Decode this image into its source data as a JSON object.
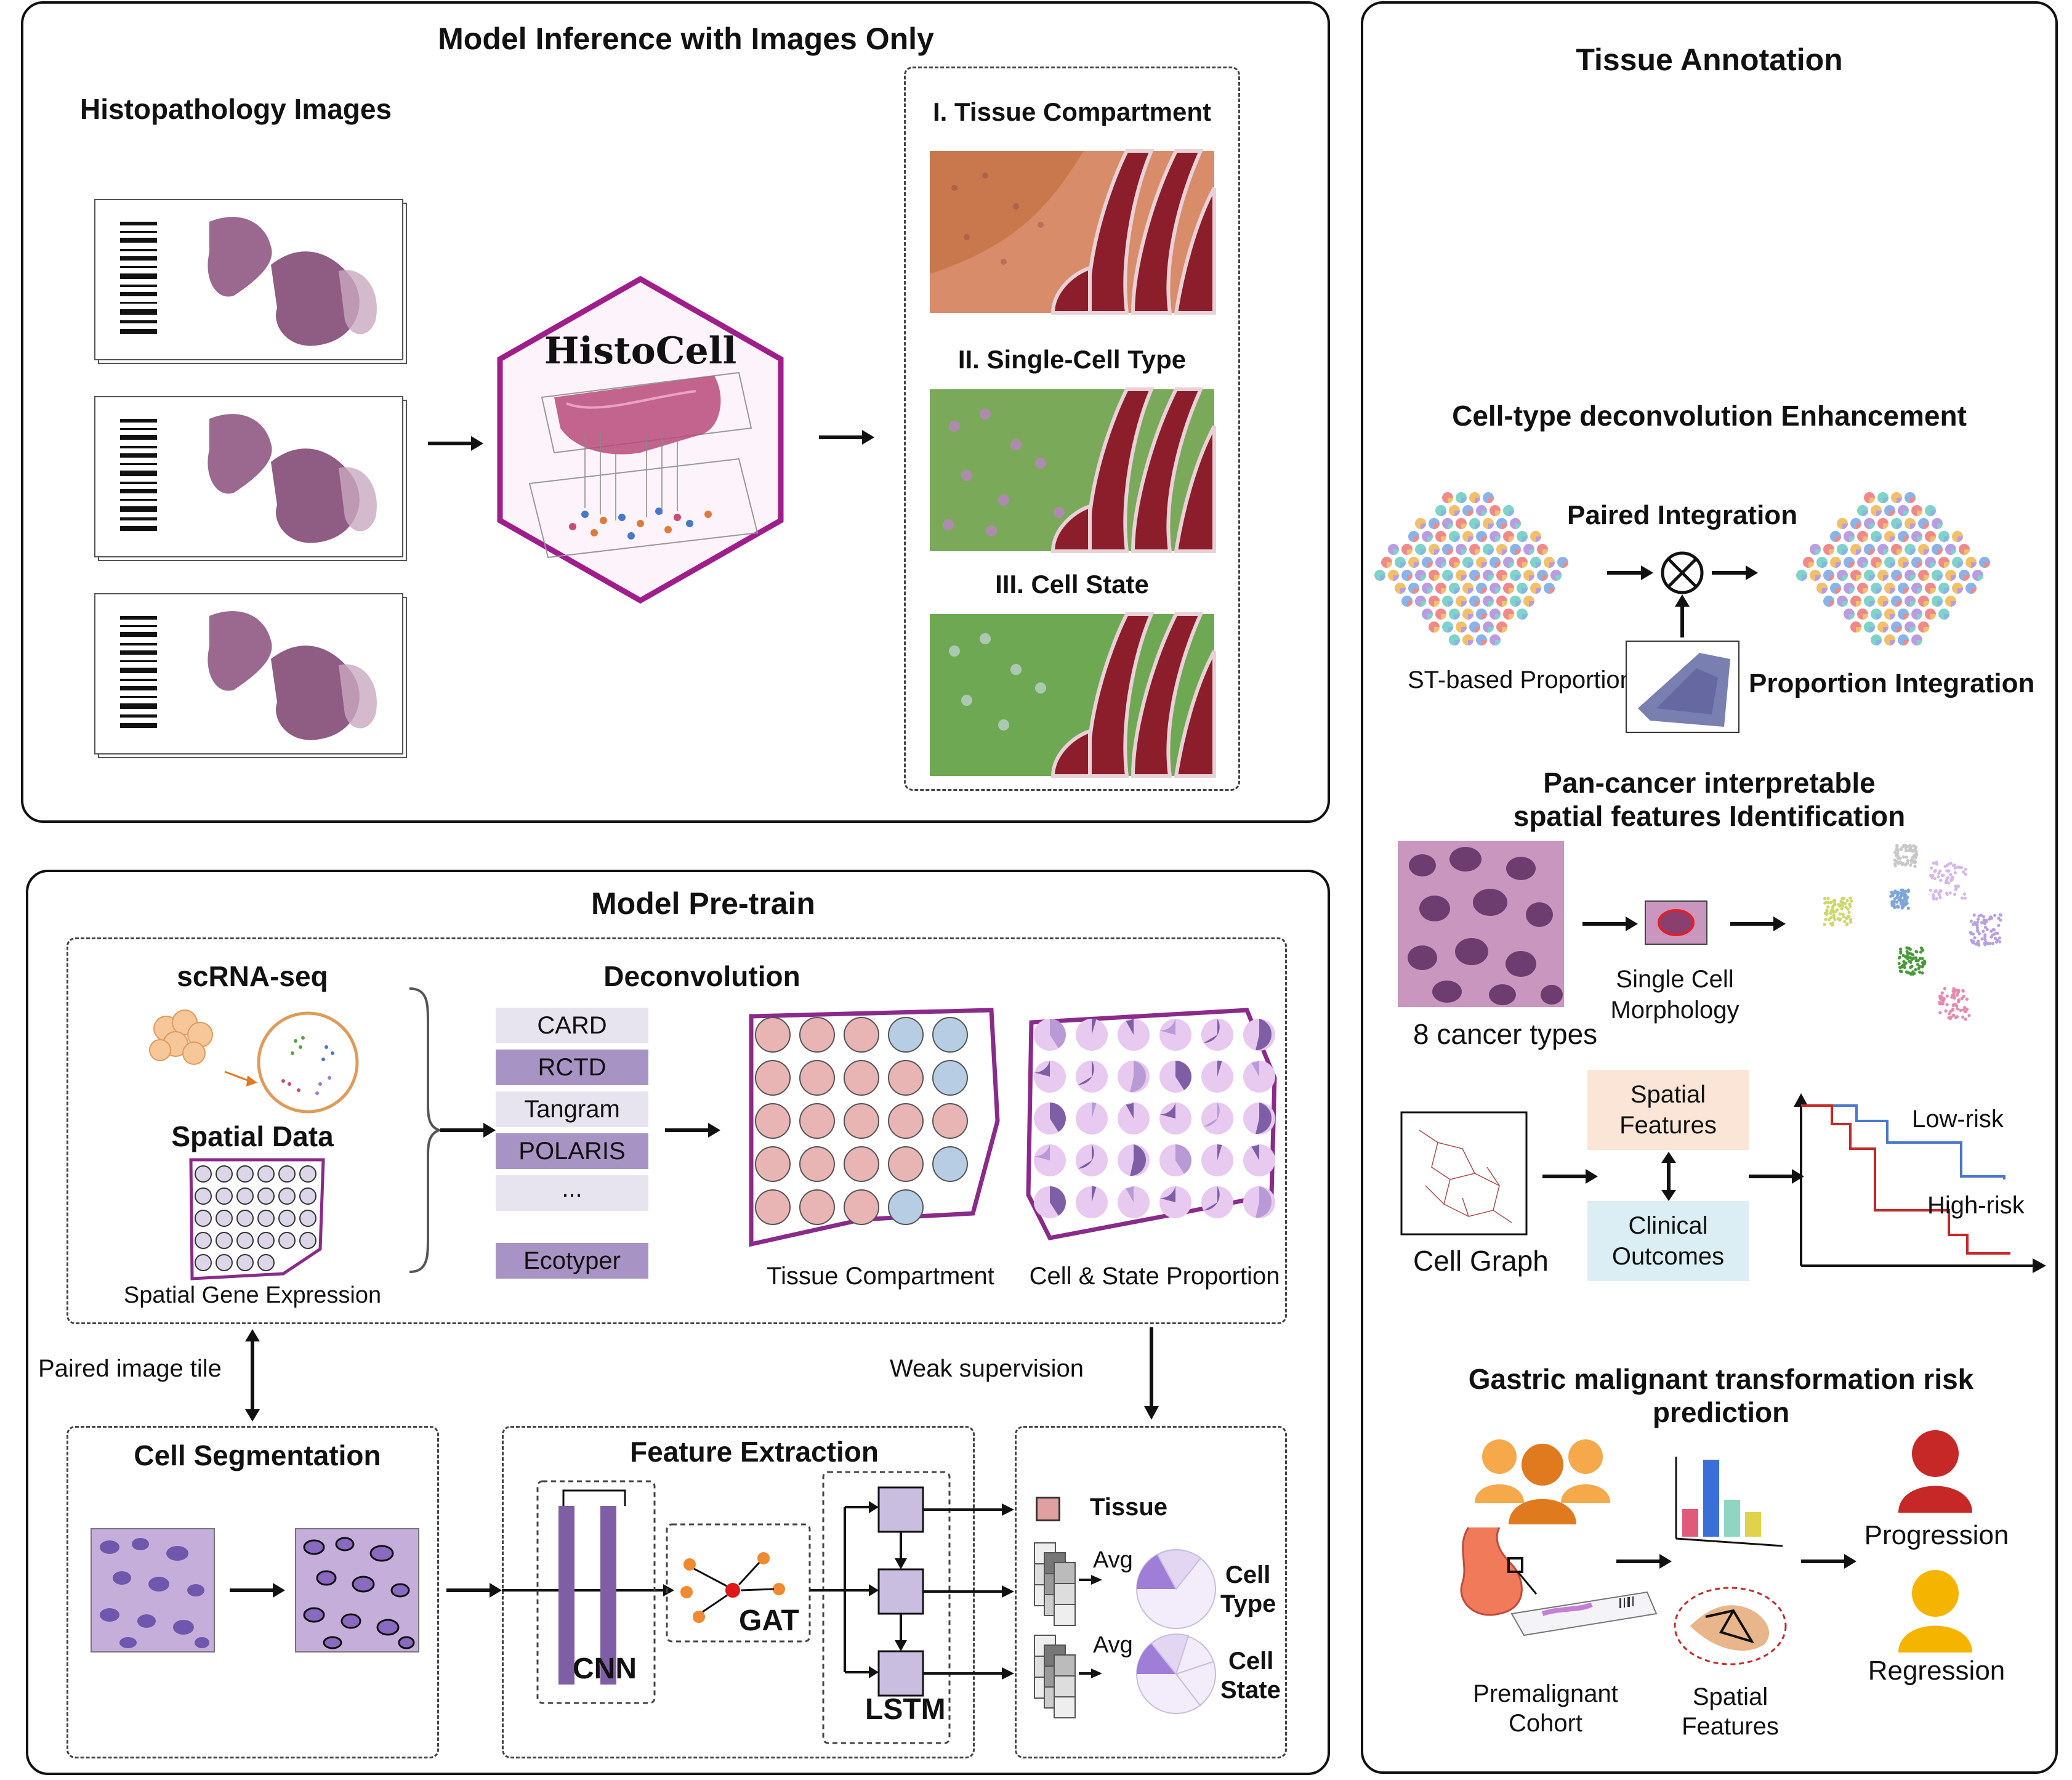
{
  "inference": {
    "title": "Model Inference with Images Only",
    "histo_title": "Histopathology Images",
    "model_name": "HistoCell",
    "out1": "I. Tissue Compartment",
    "out2": "II. Single-Cell Type",
    "out3": "III. Cell State"
  },
  "annotation": {
    "title": "Tissue Annotation",
    "decon_title": "Cell-type deconvolution Enhancement",
    "paired": "Paired Integration",
    "st_prop": "ST-based Proportion",
    "prop_int": "Proportion Integration",
    "pan_title_1": "Pan-cancer interpretable",
    "pan_title_2": "spatial features Identification",
    "single_cell_1": "Single Cell",
    "single_cell_2": "Morphology",
    "cancer_types": "8 cancer types",
    "spatial_feat_1": "Spatial",
    "spatial_feat_2": "Features",
    "clinical_1": "Clinical",
    "clinical_2": "Outcomes",
    "cell_graph": "Cell Graph",
    "low_risk": "Low-risk",
    "high_risk": "High-risk",
    "gastric_1": "Gastric malignant transformation risk",
    "gastric_2": "prediction",
    "premal_1": "Premalignant",
    "premal_2": "Cohort",
    "sf_1": "Spatial",
    "sf_2": "Features",
    "progression": "Progression",
    "regression": "Regression"
  },
  "pretrain": {
    "title": "Model Pre-train",
    "scrna": "scRNA-seq",
    "spatial_data": "Spatial Data",
    "sge": "Spatial Gene Expression",
    "decon": "Deconvolution",
    "methods": [
      "CARD",
      "RCTD",
      "Tangram",
      "POLARIS",
      "...",
      "Ecotyper"
    ],
    "tissue_comp": "Tissue Compartment",
    "cell_state_prop": "Cell & State Proportion",
    "paired_tile": "Paired image tile",
    "weak_sup": "Weak supervision",
    "cell_seg": "Cell Segmentation",
    "feat_ext": "Feature Extraction",
    "cnn": "CNN",
    "gat": "GAT",
    "lstm": "LSTM",
    "tissue": "Tissue",
    "avg1": "Avg",
    "avg2": "Avg",
    "cell_type_1": "Cell",
    "cell_type_2": "Type",
    "cell_state_1": "Cell",
    "cell_state_2": "State"
  },
  "colors": {
    "purple_dark": "#7e5fa6",
    "purple_mid": "#a894c4",
    "pink": "#e8b4b4",
    "blue": "#b7cde3",
    "hex_border": "#a01e8c",
    "he_red": "#b43c3c"
  }
}
